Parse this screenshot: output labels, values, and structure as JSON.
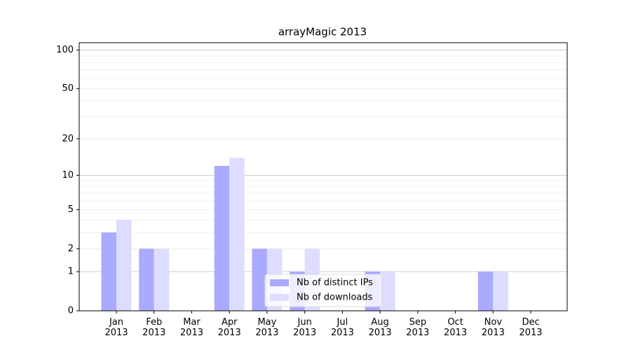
{
  "chart_data": {
    "type": "bar",
    "title": "arrayMagic 2013",
    "categories": [
      "Jan\n2013",
      "Feb\n2013",
      "Mar\n2013",
      "Apr\n2013",
      "May\n2013",
      "Jun\n2013",
      "Jul\n2013",
      "Aug\n2013",
      "Sep\n2013",
      "Oct\n2013",
      "Nov\n2013",
      "Dec\n2013"
    ],
    "series": [
      {
        "name": "Nb of distinct IPs",
        "color": "#aaaaff",
        "values": [
          3,
          2,
          0,
          12,
          2,
          1,
          0,
          1,
          0,
          0,
          1,
          0
        ]
      },
      {
        "name": "Nb of downloads",
        "color": "#ddddff",
        "values": [
          4,
          2,
          0,
          14,
          2,
          2,
          0,
          1,
          0,
          0,
          1,
          0
        ]
      }
    ],
    "yscale": "log1p",
    "ylim": [
      0,
      114
    ],
    "yticks": [
      0,
      1,
      2,
      5,
      10,
      20,
      50,
      100
    ],
    "minor_yticks": [
      3,
      4,
      6,
      7,
      8,
      9,
      30,
      40,
      60,
      70,
      80,
      90
    ],
    "grid": true,
    "legend": "lower center"
  }
}
